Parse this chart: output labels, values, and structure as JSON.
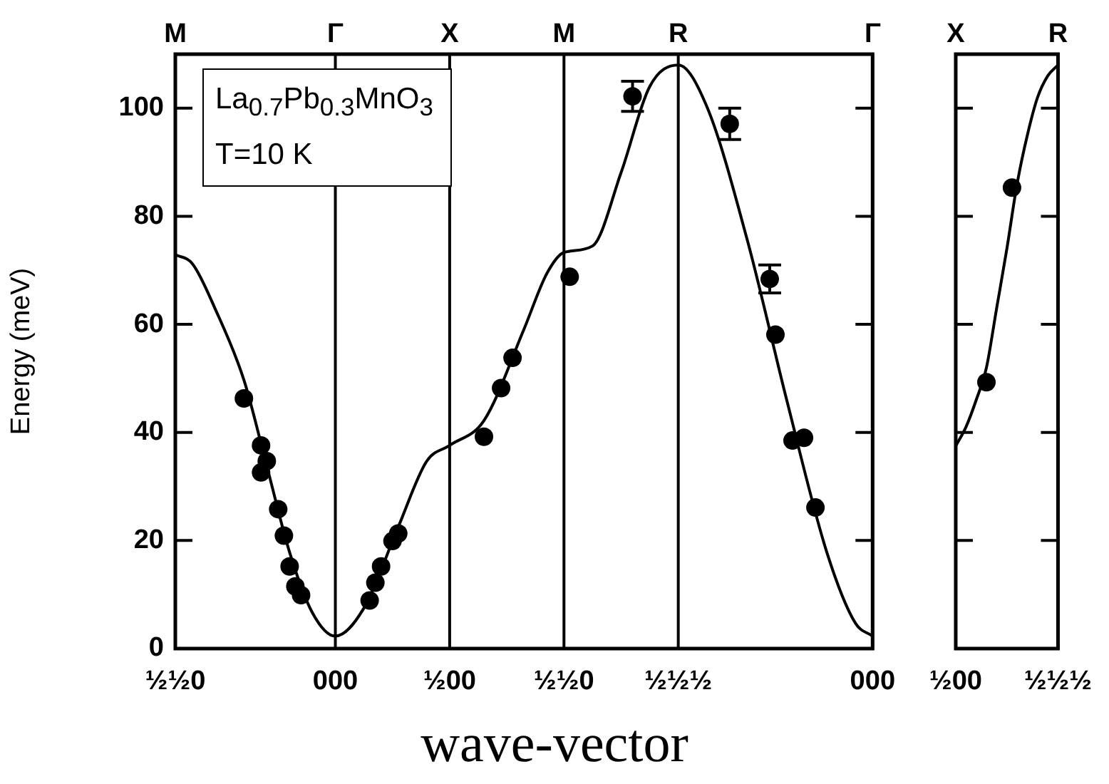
{
  "chart_data": [
    {
      "type": "line",
      "xlabel": "wave-vector",
      "ylabel": "Energy (meV)",
      "annotations": [
        "La$_{0.7}$Pb$_{0.3}$MnO$_{3}$",
        "T=10 K",
        "M",
        "Γ",
        "X",
        "M",
        "R",
        "Γ"
      ],
      "categories": [
        "½½0",
        null,
        null,
        null,
        null,
        null,
        null,
        null,
        null,
        null,
        null,
        null,
        null,
        null,
        null,
        null,
        null,
        null,
        null,
        null,
        null,
        null,
        null,
        null,
        null,
        null,
        null,
        null,
        "000",
        null,
        null,
        null,
        null,
        null,
        null,
        null,
        null,
        null,
        null,
        null,
        null,
        null,
        null,
        null,
        null,
        null,
        null,
        null,
        "½00",
        null,
        null,
        null,
        null,
        null,
        null,
        null,
        null,
        null,
        null,
        null,
        null,
        null,
        null,
        null,
        null,
        null,
        null,
        null,
        "½½0",
        null,
        null,
        null,
        null,
        null,
        null,
        null,
        null,
        null,
        null,
        null,
        null,
        null,
        null,
        null,
        null,
        null,
        null,
        null,
        "½½½",
        null,
        null,
        null,
        null,
        null,
        null,
        null,
        null,
        null,
        null,
        null,
        null,
        null,
        null,
        null,
        null,
        null,
        null,
        null,
        null,
        null,
        null,
        null,
        null,
        null,
        null,
        null,
        null,
        null,
        null,
        null,
        null,
        null,
        "000"
      ],
      "ylim": [
        0,
        110
      ],
      "yticks": [
        0,
        20,
        40,
        60,
        80,
        100
      ],
      "grid": "x",
      "legend": false,
      "series": [
        {
          "color": "#000000",
          "marker": "none",
          "line_style": "solid",
          "values": [
            72.9,
            null,
            null,
            71.2,
            null,
            null,
            null,
            62.8,
            null,
            null,
            null,
            null,
            49.7,
            null,
            null,
            null,
            33.8,
            null,
            null,
            null,
            17.8,
            null,
            null,
            null,
            6.6,
            null,
            null,
            null,
            2.3,
            null,
            null,
            null,
            null,
            7.5,
            null,
            null,
            null,
            null,
            null,
            22.5,
            null,
            null,
            null,
            null,
            34.7,
            null,
            null,
            null,
            37.6,
            null,
            null,
            null,
            null,
            null,
            42.2,
            null,
            null,
            null,
            null,
            null,
            null,
            59.1,
            null,
            null,
            null,
            69.4,
            null,
            null,
            73.3,
            null,
            null,
            null,
            null,
            74.5,
            null,
            null,
            null,
            null,
            88.1,
            null,
            null,
            null,
            null,
            104,
            null,
            null,
            null,
            null,
            108,
            null,
            null,
            null,
            null,
            100.3,
            null,
            null,
            null,
            null,
            null,
            null,
            75.9,
            null,
            null,
            null,
            null,
            null,
            null,
            45.9,
            null,
            null,
            null,
            null,
            null,
            null,
            17.8,
            null,
            null,
            null,
            null,
            4.7,
            null,
            null,
            2.3
          ]
        },
        {
          "type": "scatter",
          "color": "#000000",
          "marker": "circle",
          "values": [
            null,
            null,
            null,
            null,
            null,
            null,
            null,
            null,
            null,
            null,
            null,
            null,
            46.3,
            null,
            null,
            37.6,
            34.7,
            null,
            25.8,
            20.9,
            15.2,
            11.5,
            9.9,
            null,
            null,
            null,
            null,
            null,
            null,
            null,
            null,
            null,
            null,
            null,
            8.9,
            12.2,
            15.2,
            null,
            19.9,
            21.3,
            null,
            null,
            null,
            null,
            null,
            null,
            null,
            null,
            null,
            null,
            null,
            null,
            null,
            null,
            39.2,
            null,
            null,
            48.2,
            null,
            53.8,
            null,
            null,
            null,
            null,
            null,
            null,
            null,
            null,
            null,
            68.8,
            null,
            null,
            null,
            null,
            null,
            null,
            null,
            null,
            null,
            null,
            102.2,
            null,
            null,
            null,
            null,
            null,
            null,
            null,
            null,
            null,
            null,
            null,
            null,
            null,
            null,
            null,
            null,
            97.1,
            null,
            null,
            null,
            null,
            null,
            null,
            68.4,
            58.1,
            null,
            null,
            38.5,
            null,
            39,
            null,
            26.1,
            null,
            null,
            null,
            null,
            null,
            null,
            null,
            null,
            null,
            null
          ],
          "errors": [
            null,
            null,
            null,
            null,
            null,
            null,
            null,
            null,
            null,
            null,
            null,
            null,
            null,
            null,
            null,
            null,
            null,
            null,
            null,
            null,
            null,
            null,
            null,
            null,
            null,
            null,
            null,
            null,
            null,
            null,
            null,
            null,
            null,
            null,
            null,
            null,
            null,
            null,
            null,
            null,
            null,
            null,
            null,
            null,
            null,
            null,
            null,
            null,
            null,
            null,
            null,
            null,
            null,
            null,
            null,
            null,
            null,
            null,
            null,
            null,
            null,
            null,
            null,
            null,
            null,
            null,
            null,
            null,
            null,
            null,
            null,
            null,
            null,
            null,
            null,
            null,
            null,
            null,
            null,
            null,
            2.8,
            null,
            null,
            null,
            null,
            null,
            null,
            null,
            null,
            null,
            null,
            null,
            null,
            null,
            null,
            null,
            null,
            2.9,
            null,
            null,
            null,
            null,
            null,
            null,
            2.6,
            null,
            null,
            null,
            null,
            null,
            null,
            null,
            null,
            null,
            null,
            null,
            null,
            null,
            null,
            null,
            null,
            null,
            null
          ]
        },
        {
          "type": "scatter",
          "color": "#000000",
          "marker": "circle",
          "values": [
            null,
            null,
            null,
            null,
            null,
            null,
            null,
            null,
            null,
            null,
            null,
            null,
            null,
            null,
            null,
            32.6,
            null,
            null,
            null,
            null,
            null,
            null,
            null,
            null,
            null,
            null,
            null,
            null,
            null,
            null,
            null,
            null,
            null,
            null,
            null,
            null,
            null,
            null,
            null,
            null,
            null,
            null,
            null,
            null,
            null,
            null,
            null,
            null,
            null,
            null,
            null,
            null,
            null,
            null,
            null,
            null,
            null,
            null,
            null,
            null,
            null,
            null,
            null,
            null,
            null,
            null,
            null,
            null,
            null,
            null,
            null,
            null,
            null,
            null,
            null,
            null,
            null,
            null,
            null,
            null,
            null,
            null,
            null,
            null,
            null,
            null,
            null,
            null,
            null,
            null,
            null,
            null,
            null,
            null,
            null,
            null,
            null,
            null,
            null,
            null,
            null,
            null,
            null,
            null,
            null,
            null,
            null,
            null,
            null,
            null,
            null,
            null,
            null,
            null,
            null,
            null,
            null,
            null,
            null,
            null,
            null,
            null,
            null
          ]
        }
      ]
    },
    {
      "type": "line",
      "annotations": [
        "X",
        "R"
      ],
      "categories": [
        "½00",
        null,
        null,
        null,
        null,
        null,
        null,
        null,
        null,
        null,
        null,
        null,
        null,
        null,
        null,
        null,
        null,
        null,
        null,
        null,
        "½½½"
      ],
      "ylim": [
        0,
        110
      ],
      "yticks": [
        0,
        20,
        40,
        60,
        80,
        100
      ],
      "tick_labels": "x",
      "grid": false,
      "legend": false,
      "series": [
        {
          "color": "#000000",
          "marker": "none",
          "line_style": "solid",
          "values": [
            37.5,
            null,
            41,
            null,
            46,
            null,
            52,
            null,
            63,
            null,
            74,
            null,
            86,
            null,
            95,
            null,
            102,
            null,
            106,
            null,
            108
          ]
        },
        {
          "type": "scatter",
          "color": "#000000",
          "marker": "circle",
          "values": [
            null,
            null,
            null,
            null,
            null,
            null,
            49.3,
            null,
            null,
            null,
            null,
            85.3,
            null,
            null,
            null,
            null,
            null,
            null,
            null,
            null,
            null
          ]
        }
      ]
    }
  ]
}
